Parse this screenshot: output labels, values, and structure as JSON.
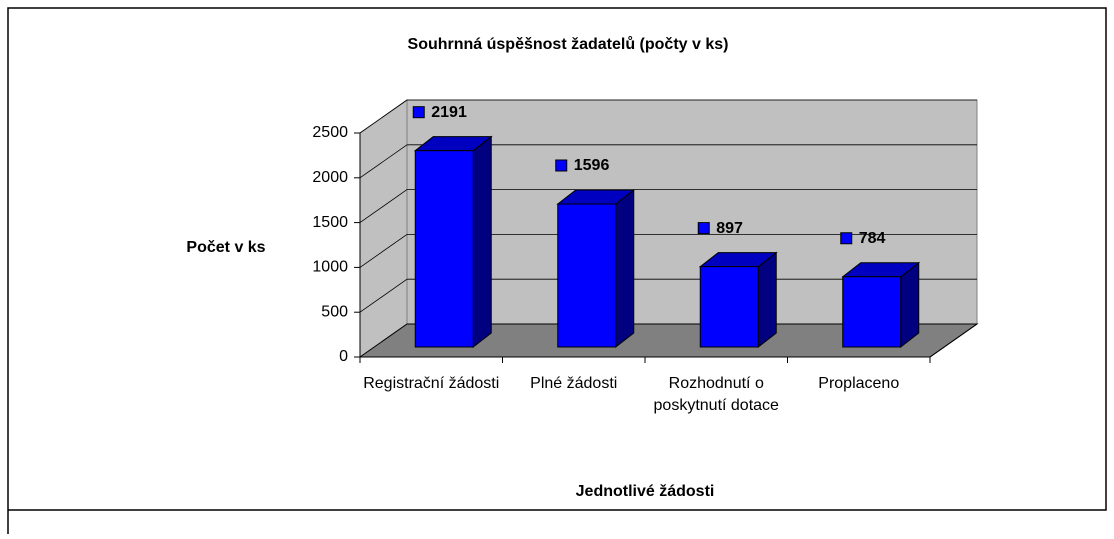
{
  "chart_data": {
    "type": "bar3d",
    "title": "Souhrnná úspěšnost žadatelů (počty v ks)",
    "y_label": "Počet v ks",
    "x_label": "Jednotlivé žádosti",
    "categories": [
      "Registrační žádosti",
      "Plné žádosti",
      "Rozhodnutí o poskytnutí dotace",
      "Proplaceno"
    ],
    "values": [
      2191,
      1596,
      897,
      784
    ],
    "color": "#0000ff",
    "ylim": [
      0,
      2500
    ],
    "yticks": [
      0,
      500,
      1000,
      1500,
      2000,
      2500
    ],
    "grid": true
  }
}
